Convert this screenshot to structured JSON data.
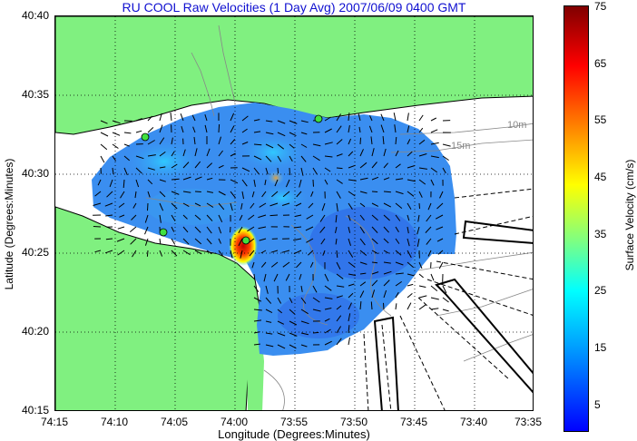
{
  "title": "RU COOL Raw Velocities (1 Day Avg) 2007/06/09 0400 GMT",
  "axes": {
    "xlabel": "Longitude (Degrees:Minutes)",
    "ylabel": "Latitude (Degrees:Minutes)",
    "xticks": [
      "74:15",
      "74:10",
      "74:05",
      "74:00",
      "73:55",
      "73:50",
      "73:45",
      "73:40",
      "73:35"
    ],
    "yticks": [
      "40:40",
      "40:35",
      "40:30",
      "40:25",
      "40:20",
      "40:15"
    ]
  },
  "contours": {
    "label_10m": "10m",
    "label_15m": "15m"
  },
  "colorbar": {
    "label": "Surface Velocity (cm/s)",
    "ticks": [
      "75",
      "65",
      "55",
      "45",
      "35",
      "25",
      "15",
      "5"
    ],
    "min": 0,
    "max": 75
  },
  "colors": {
    "land": "#80f080",
    "title": "#1010d0",
    "water": "#ffffff"
  }
}
